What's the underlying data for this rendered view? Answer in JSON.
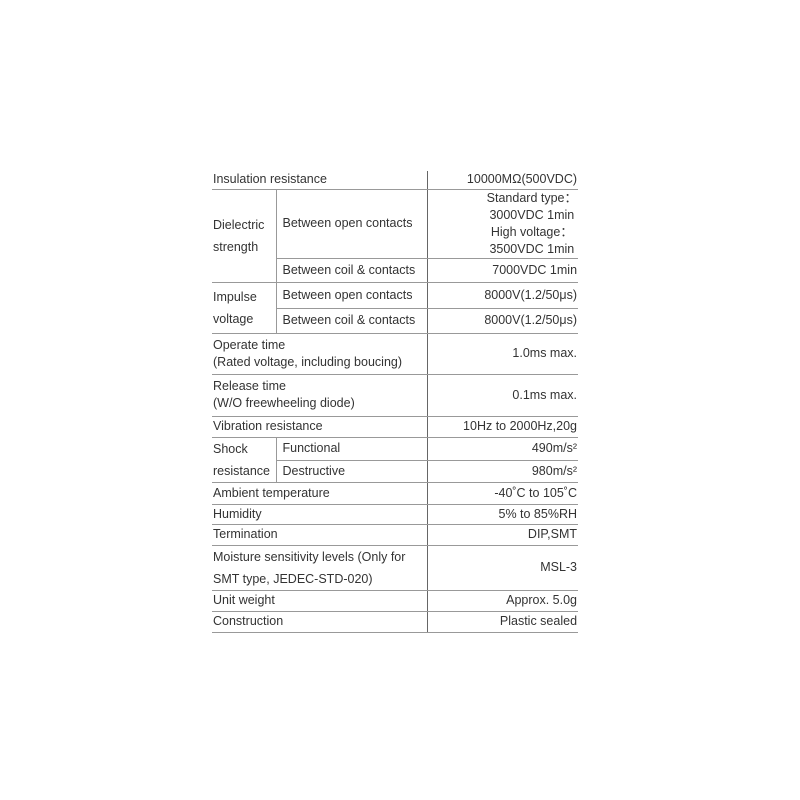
{
  "rows": {
    "insulation": {
      "label": "Insulation resistance",
      "value": "10000MΩ(500VDC)"
    },
    "dielectric": {
      "label_1": "Dielectric",
      "label_2": "strength",
      "open": {
        "label": "Between open contacts",
        "value_1": "Standard type：",
        "value_2": "3000VDC 1min",
        "value_3": "High voltage：",
        "value_4": "3500VDC 1min"
      },
      "coil": {
        "label": "Between coil & contacts",
        "value": "7000VDC 1min"
      }
    },
    "impulse": {
      "label_1": "Impulse",
      "label_2": "voltage",
      "open": {
        "label": "Between open contacts",
        "value": "8000V(1.2/50μs)"
      },
      "coil": {
        "label": "Between coil & contacts",
        "value": "8000V(1.2/50μs)"
      }
    },
    "operate": {
      "label_1": "Operate time",
      "label_2": "(Rated voltage, including boucing)",
      "value": "1.0ms max."
    },
    "release": {
      "label_1": "Release time",
      "label_2": "(W/O freewheeling diode)",
      "value": "0.1ms max."
    },
    "vibration": {
      "label": "Vibration resistance",
      "value": "10Hz to 2000Hz,20g"
    },
    "shock": {
      "label_1": "Shock",
      "label_2": "resistance",
      "functional": {
        "label": "Functional",
        "value": "490m/s²"
      },
      "destructive": {
        "label": "Destructive",
        "value": "980m/s²"
      }
    },
    "ambient": {
      "label": "Ambient temperature",
      "value": "-40˚C to 105˚C"
    },
    "humidity": {
      "label": "Humidity",
      "value": "5% to 85%RH"
    },
    "termination": {
      "label": "Termination",
      "value": "DIP,SMT"
    },
    "moisture": {
      "label_1": "Moisture sensitivity levels (Only for",
      "label_2": "SMT type, JEDEC-STD-020)",
      "value": "MSL-3"
    },
    "weight": {
      "label": "Unit weight",
      "value": "Approx. 5.0g"
    },
    "construction": {
      "label": "Construction",
      "value": "Plastic sealed"
    }
  }
}
